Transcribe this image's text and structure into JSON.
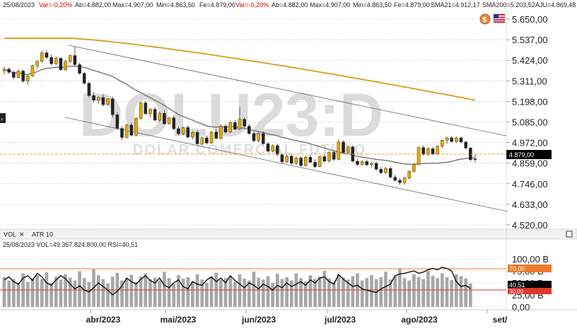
{
  "header": {
    "date": "25/08/2023",
    "var_label": "Var=-0,20%",
    "ab": "Ab=4.882,00",
    "max": "Max=4.907,00",
    "min": "Min=4.863,50",
    "fe": "Fe=4.879,00",
    "var_label2": "Var=-0,20%",
    "ab2": "Ab=4.882,00",
    "max2": "Max=4.907,00",
    "min2": "Min=4.863,50",
    "fe2": "Fe=4.879,00",
    "sma21": "SMA21=4.912,17",
    "sma200": "SMA200=5.203,52",
    "aju": "AJU=4.869,48"
  },
  "watermark": {
    "symbol": "DOLU23:D",
    "name": "DOLAR COMERCIAL FUTURO"
  },
  "price_tag": "4.879,00",
  "lower_panel": {
    "tab_vol": "VOL",
    "tab_close": "✕",
    "tab_atr": "ATR 10",
    "header": "25/08/2023  VOL=49.367.824.800,00  RSI=40,51",
    "rsi_tag": "40,51",
    "level_70": "70,00",
    "level_30": "30,00"
  },
  "colors": {
    "up": "#e9a800",
    "down": "#222222",
    "sma200": "#d4a017",
    "sma21": "#777777",
    "last": "#f0a030",
    "rsi_hi": "#f07a28",
    "rsi_lo": "#e0362c"
  },
  "chart_data": [
    {
      "type": "candlestick",
      "title": "DOLU23:D",
      "yticks": [
        "5.650,00",
        "5.537,00",
        "5.424,00",
        "5.311,00",
        "5.198,00",
        "5.085,00",
        "4.972,00",
        "4.859,00",
        "4.746,00",
        "4.633,00",
        "4.520,00"
      ],
      "xticks": [
        "abr/2023",
        "mai/2023",
        "jun/2023",
        "jul/2023",
        "ago/2023",
        "set/"
      ],
      "ylim": [
        4520,
        5650
      ],
      "series": [
        {
          "name": "SMA200",
          "last": 5203.52
        },
        {
          "name": "SMA21",
          "last": 4912.17
        }
      ],
      "last_close": 4879.0,
      "candles": [
        {
          "o": 5365,
          "h": 5390,
          "l": 5345,
          "c": 5375
        },
        {
          "o": 5375,
          "h": 5385,
          "l": 5350,
          "c": 5358
        },
        {
          "o": 5358,
          "h": 5368,
          "l": 5320,
          "c": 5330
        },
        {
          "o": 5330,
          "h": 5375,
          "l": 5325,
          "c": 5365
        },
        {
          "o": 5365,
          "h": 5372,
          "l": 5300,
          "c": 5310
        },
        {
          "o": 5310,
          "h": 5345,
          "l": 5290,
          "c": 5338
        },
        {
          "o": 5338,
          "h": 5400,
          "l": 5332,
          "c": 5395
        },
        {
          "o": 5395,
          "h": 5425,
          "l": 5378,
          "c": 5418
        },
        {
          "o": 5418,
          "h": 5475,
          "l": 5410,
          "c": 5465
        },
        {
          "o": 5465,
          "h": 5480,
          "l": 5430,
          "c": 5440
        },
        {
          "o": 5440,
          "h": 5455,
          "l": 5395,
          "c": 5405
        },
        {
          "o": 5405,
          "h": 5445,
          "l": 5398,
          "c": 5435
        },
        {
          "o": 5435,
          "h": 5442,
          "l": 5365,
          "c": 5372
        },
        {
          "o": 5372,
          "h": 5425,
          "l": 5366,
          "c": 5418
        },
        {
          "o": 5418,
          "h": 5455,
          "l": 5408,
          "c": 5450
        },
        {
          "o": 5450,
          "h": 5500,
          "l": 5392,
          "c": 5400
        },
        {
          "o": 5400,
          "h": 5410,
          "l": 5345,
          "c": 5352
        },
        {
          "o": 5352,
          "h": 5360,
          "l": 5290,
          "c": 5298
        },
        {
          "o": 5298,
          "h": 5306,
          "l": 5220,
          "c": 5230
        },
        {
          "o": 5230,
          "h": 5250,
          "l": 5190,
          "c": 5205
        },
        {
          "o": 5205,
          "h": 5226,
          "l": 5185,
          "c": 5220
        },
        {
          "o": 5220,
          "h": 5238,
          "l": 5170,
          "c": 5180
        },
        {
          "o": 5180,
          "h": 5215,
          "l": 5175,
          "c": 5212
        },
        {
          "o": 5212,
          "h": 5225,
          "l": 5110,
          "c": 5125
        },
        {
          "o": 5125,
          "h": 5138,
          "l": 5040,
          "c": 5050
        },
        {
          "o": 5050,
          "h": 5063,
          "l": 4985,
          "c": 5000
        },
        {
          "o": 5000,
          "h": 5075,
          "l": 4995,
          "c": 5068
        },
        {
          "o": 5068,
          "h": 5080,
          "l": 5005,
          "c": 5012
        },
        {
          "o": 5012,
          "h": 5110,
          "l": 5006,
          "c": 5105
        },
        {
          "o": 5105,
          "h": 5198,
          "l": 5098,
          "c": 5190
        },
        {
          "o": 5190,
          "h": 5200,
          "l": 5125,
          "c": 5130
        },
        {
          "o": 5130,
          "h": 5162,
          "l": 5110,
          "c": 5155
        },
        {
          "o": 5155,
          "h": 5168,
          "l": 5088,
          "c": 5095
        },
        {
          "o": 5095,
          "h": 5140,
          "l": 5085,
          "c": 5133
        },
        {
          "o": 5133,
          "h": 5148,
          "l": 5070,
          "c": 5075
        },
        {
          "o": 5075,
          "h": 5112,
          "l": 5070,
          "c": 5108
        },
        {
          "o": 5108,
          "h": 5122,
          "l": 5040,
          "c": 5048
        },
        {
          "o": 5048,
          "h": 5060,
          "l": 5010,
          "c": 5020
        },
        {
          "o": 5020,
          "h": 5060,
          "l": 5012,
          "c": 5055
        },
        {
          "o": 5055,
          "h": 5068,
          "l": 4995,
          "c": 5002
        },
        {
          "o": 5002,
          "h": 5035,
          "l": 4990,
          "c": 5028
        },
        {
          "o": 5028,
          "h": 5040,
          "l": 4960,
          "c": 4965
        },
        {
          "o": 4965,
          "h": 5005,
          "l": 4960,
          "c": 4998
        },
        {
          "o": 4998,
          "h": 5010,
          "l": 4962,
          "c": 4970
        },
        {
          "o": 4970,
          "h": 5035,
          "l": 4966,
          "c": 5030
        },
        {
          "o": 5030,
          "h": 5045,
          "l": 4990,
          "c": 4995
        },
        {
          "o": 4995,
          "h": 5070,
          "l": 4990,
          "c": 5062
        },
        {
          "o": 5062,
          "h": 5075,
          "l": 5020,
          "c": 5030
        },
        {
          "o": 5030,
          "h": 5090,
          "l": 5024,
          "c": 5082
        },
        {
          "o": 5082,
          "h": 5095,
          "l": 5040,
          "c": 5045
        },
        {
          "o": 5045,
          "h": 5168,
          "l": 5040,
          "c": 5100
        },
        {
          "o": 5100,
          "h": 5110,
          "l": 5055,
          "c": 5062
        },
        {
          "o": 5062,
          "h": 5075,
          "l": 5015,
          "c": 5022
        },
        {
          "o": 5022,
          "h": 5035,
          "l": 4975,
          "c": 4982
        },
        {
          "o": 4982,
          "h": 5030,
          "l": 4975,
          "c": 5022
        },
        {
          "o": 5022,
          "h": 5032,
          "l": 4960,
          "c": 4966
        },
        {
          "o": 4966,
          "h": 4975,
          "l": 4918,
          "c": 4925
        },
        {
          "o": 4925,
          "h": 4962,
          "l": 4918,
          "c": 4955
        },
        {
          "o": 4955,
          "h": 4965,
          "l": 4898,
          "c": 4905
        },
        {
          "o": 4905,
          "h": 4915,
          "l": 4858,
          "c": 4866
        },
        {
          "o": 4866,
          "h": 4905,
          "l": 4860,
          "c": 4898
        },
        {
          "o": 4898,
          "h": 4908,
          "l": 4850,
          "c": 4858
        },
        {
          "o": 4858,
          "h": 4895,
          "l": 4850,
          "c": 4888
        },
        {
          "o": 4888,
          "h": 4898,
          "l": 4840,
          "c": 4846
        },
        {
          "o": 4846,
          "h": 4900,
          "l": 4840,
          "c": 4892
        },
        {
          "o": 4892,
          "h": 4905,
          "l": 4858,
          "c": 4864
        },
        {
          "o": 4864,
          "h": 4880,
          "l": 4830,
          "c": 4840
        },
        {
          "o": 4840,
          "h": 4900,
          "l": 4835,
          "c": 4895
        },
        {
          "o": 4895,
          "h": 4908,
          "l": 4862,
          "c": 4870
        },
        {
          "o": 4870,
          "h": 4925,
          "l": 4864,
          "c": 4918
        },
        {
          "o": 4918,
          "h": 4928,
          "l": 4872,
          "c": 4880
        },
        {
          "o": 4880,
          "h": 4990,
          "l": 4874,
          "c": 4975
        },
        {
          "o": 4975,
          "h": 4985,
          "l": 4912,
          "c": 4918
        },
        {
          "o": 4918,
          "h": 4955,
          "l": 4910,
          "c": 4948
        },
        {
          "o": 4948,
          "h": 4958,
          "l": 4862,
          "c": 4870
        },
        {
          "o": 4870,
          "h": 4882,
          "l": 4845,
          "c": 4852
        },
        {
          "o": 4852,
          "h": 4875,
          "l": 4845,
          "c": 4868
        },
        {
          "o": 4868,
          "h": 4880,
          "l": 4842,
          "c": 4850
        },
        {
          "o": 4850,
          "h": 4865,
          "l": 4835,
          "c": 4858
        },
        {
          "o": 4858,
          "h": 4868,
          "l": 4818,
          "c": 4826
        },
        {
          "o": 4826,
          "h": 4838,
          "l": 4798,
          "c": 4806
        },
        {
          "o": 4806,
          "h": 4838,
          "l": 4800,
          "c": 4830
        },
        {
          "o": 4830,
          "h": 4840,
          "l": 4775,
          "c": 4782
        },
        {
          "o": 4782,
          "h": 4795,
          "l": 4758,
          "c": 4765
        },
        {
          "o": 4765,
          "h": 4778,
          "l": 4740,
          "c": 4752
        },
        {
          "o": 4752,
          "h": 4785,
          "l": 4740,
          "c": 4778
        },
        {
          "o": 4778,
          "h": 4820,
          "l": 4770,
          "c": 4814
        },
        {
          "o": 4814,
          "h": 4860,
          "l": 4808,
          "c": 4852
        },
        {
          "o": 4852,
          "h": 4950,
          "l": 4846,
          "c": 4945
        },
        {
          "o": 4945,
          "h": 4956,
          "l": 4900,
          "c": 4908
        },
        {
          "o": 4908,
          "h": 4945,
          "l": 4900,
          "c": 4938
        },
        {
          "o": 4938,
          "h": 4948,
          "l": 4902,
          "c": 4910
        },
        {
          "o": 4910,
          "h": 4958,
          "l": 4904,
          "c": 4952
        },
        {
          "o": 4952,
          "h": 4990,
          "l": 4940,
          "c": 4985
        },
        {
          "o": 4985,
          "h": 5005,
          "l": 4965,
          "c": 4998
        },
        {
          "o": 4998,
          "h": 5008,
          "l": 4972,
          "c": 4978
        },
        {
          "o": 4978,
          "h": 5005,
          "l": 4970,
          "c": 4998
        },
        {
          "o": 4998,
          "h": 5006,
          "l": 4968,
          "c": 4975
        },
        {
          "o": 4975,
          "h": 4982,
          "l": 4935,
          "c": 4942
        },
        {
          "o": 4942,
          "h": 4948,
          "l": 4870,
          "c": 4878
        },
        {
          "o": 4882,
          "h": 4907,
          "l": 4863.5,
          "c": 4879
        }
      ]
    },
    {
      "type": "bar",
      "title": "VOL / RSI",
      "yticks": [
        "100,00 B",
        "75,00 B",
        "50,00 B",
        "25,00 B",
        "0,00"
      ],
      "ylim": [
        0,
        100
      ],
      "series": [
        {
          "name": "RSI",
          "last": 40.51
        },
        {
          "name": "VOL",
          "last": 49.37
        }
      ],
      "levels": [
        70,
        30
      ],
      "volume": [
        62,
        55,
        58,
        48,
        70,
        52,
        60,
        66,
        58,
        72,
        50,
        63,
        57,
        68,
        61,
        55,
        74,
        60,
        52,
        78,
        66,
        58,
        49,
        63,
        71,
        55,
        60,
        67,
        52,
        64,
        70,
        58,
        61,
        55,
        73,
        60,
        48,
        66,
        59,
        62,
        54,
        68,
        57,
        50,
        63,
        71,
        56,
        60,
        65,
        52,
        68,
        59,
        55,
        73,
        61,
        57,
        64,
        50,
        69,
        58,
        62,
        55,
        70,
        60,
        53,
        66,
        58,
        63,
        75,
        59,
        52,
        68,
        61,
        57,
        64,
        70,
        55,
        60,
        66,
        58,
        62,
        73,
        57,
        64,
        80,
        60,
        55,
        68,
        62,
        58,
        75,
        65,
        60,
        70,
        62,
        56,
        68,
        64,
        59,
        49
      ],
      "rsi": [
        55,
        60,
        52,
        48,
        58,
        62,
        54,
        66,
        60,
        50,
        46,
        55,
        62,
        57,
        48,
        40,
        45,
        38,
        35,
        42,
        50,
        44,
        38,
        30,
        36,
        45,
        58,
        52,
        48,
        56,
        62,
        54,
        50,
        58,
        46,
        42,
        50,
        55,
        44,
        40,
        52,
        48,
        46,
        55,
        60,
        52,
        58,
        50,
        62,
        54,
        48,
        42,
        50,
        46,
        40,
        48,
        44,
        38,
        46,
        42,
        50,
        44,
        48,
        52,
        46,
        55,
        50,
        58,
        60,
        52,
        48,
        64,
        56,
        50,
        44,
        46,
        40,
        38,
        36,
        34,
        40,
        44,
        48,
        62,
        65,
        66,
        68,
        70,
        66,
        68,
        72,
        74,
        72,
        76,
        74,
        70,
        52,
        44,
        46,
        40.51
      ]
    }
  ]
}
